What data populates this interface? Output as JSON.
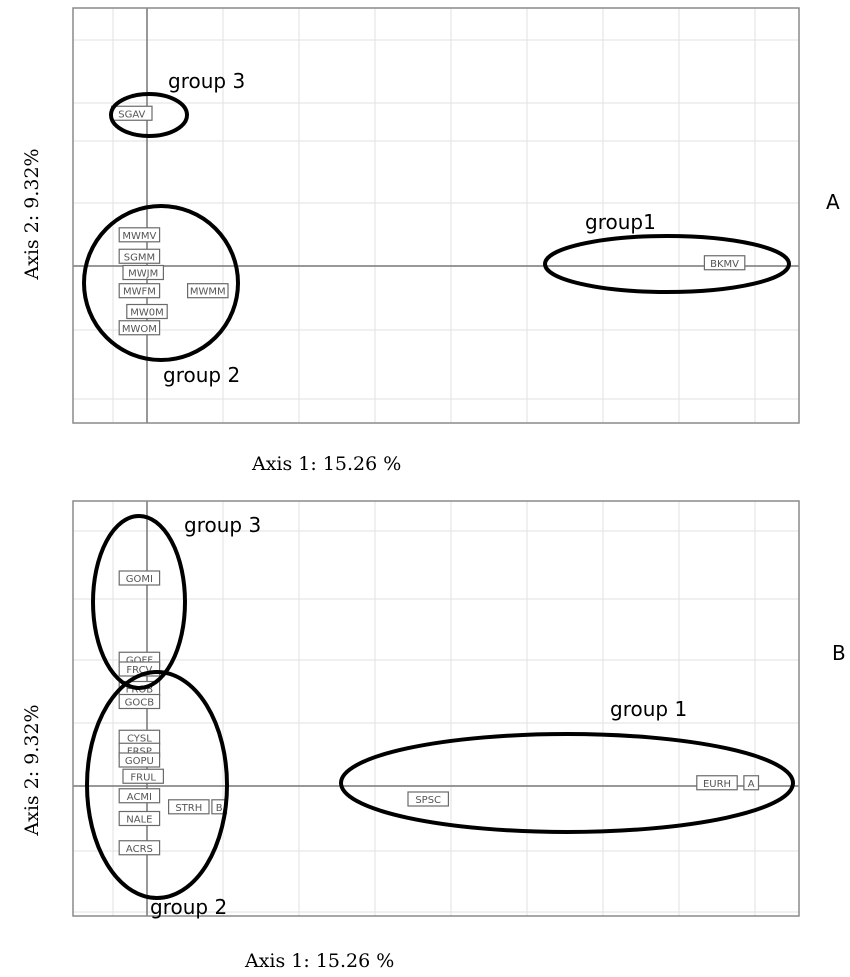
{
  "chart_data": [
    {
      "type": "scatter",
      "panel_label": "A",
      "xlabel": "Axis  1:  15.26 %",
      "ylabel": "Axis  2:  9.32%",
      "grid": true,
      "points": [
        {
          "label": "SGAV",
          "x": -0.2,
          "y": 2.35
        },
        {
          "label": "MWMV",
          "x": -0.1,
          "y": 0.48
        },
        {
          "label": "SGMM",
          "x": -0.1,
          "y": 0.15
        },
        {
          "label": "MWJM",
          "x": -0.05,
          "y": -0.1
        },
        {
          "label": "MWFM",
          "x": -0.1,
          "y": -0.38
        },
        {
          "label": "MWMM",
          "x": 0.8,
          "y": -0.38
        },
        {
          "label": "MW0M",
          "x": 0.0,
          "y": -0.7
        },
        {
          "label": "MWOM",
          "x": -0.1,
          "y": -0.95
        },
        {
          "label": "BKMV",
          "x": 7.6,
          "y": 0.05
        }
      ],
      "groups": [
        {
          "label": "group 3"
        },
        {
          "label": "group 2"
        },
        {
          "label": "group1"
        }
      ]
    },
    {
      "type": "scatter",
      "panel_label": "B",
      "xlabel": "Axis  1:  15.26 %",
      "ylabel": "Axis  2:  9.32%",
      "grid": true,
      "points": [
        {
          "label": "GOMI",
          "x": -0.1,
          "y": 3.2
        },
        {
          "label": "GOFF",
          "x": -0.1,
          "y": 1.95
        },
        {
          "label": "FRCV",
          "x": -0.1,
          "y": 1.8
        },
        {
          "label": "FROB",
          "x": -0.1,
          "y": 1.5
        },
        {
          "label": "GOCB",
          "x": -0.1,
          "y": 1.3
        },
        {
          "label": "CYSL",
          "x": -0.1,
          "y": 0.75
        },
        {
          "label": "FRSP",
          "x": -0.1,
          "y": 0.55
        },
        {
          "label": "GOPU",
          "x": -0.1,
          "y": 0.4
        },
        {
          "label": "FRUL",
          "x": -0.05,
          "y": 0.15
        },
        {
          "label": "ACMI",
          "x": -0.1,
          "y": -0.15
        },
        {
          "label": "STRH",
          "x": 0.55,
          "y": -0.32
        },
        {
          "label": "B",
          "x": 0.95,
          "y": -0.32
        },
        {
          "label": "NALE",
          "x": -0.1,
          "y": -0.5
        },
        {
          "label": "ACRS",
          "x": -0.1,
          "y": -0.95
        },
        {
          "label": "SPSC",
          "x": 3.7,
          "y": -0.2
        },
        {
          "label": "EURH",
          "x": 7.5,
          "y": 0.05
        },
        {
          "label": "A",
          "x": 7.95,
          "y": 0.05
        }
      ],
      "groups": [
        {
          "label": "group 3"
        },
        {
          "label": "group 2"
        },
        {
          "label": "group 1"
        }
      ]
    }
  ]
}
